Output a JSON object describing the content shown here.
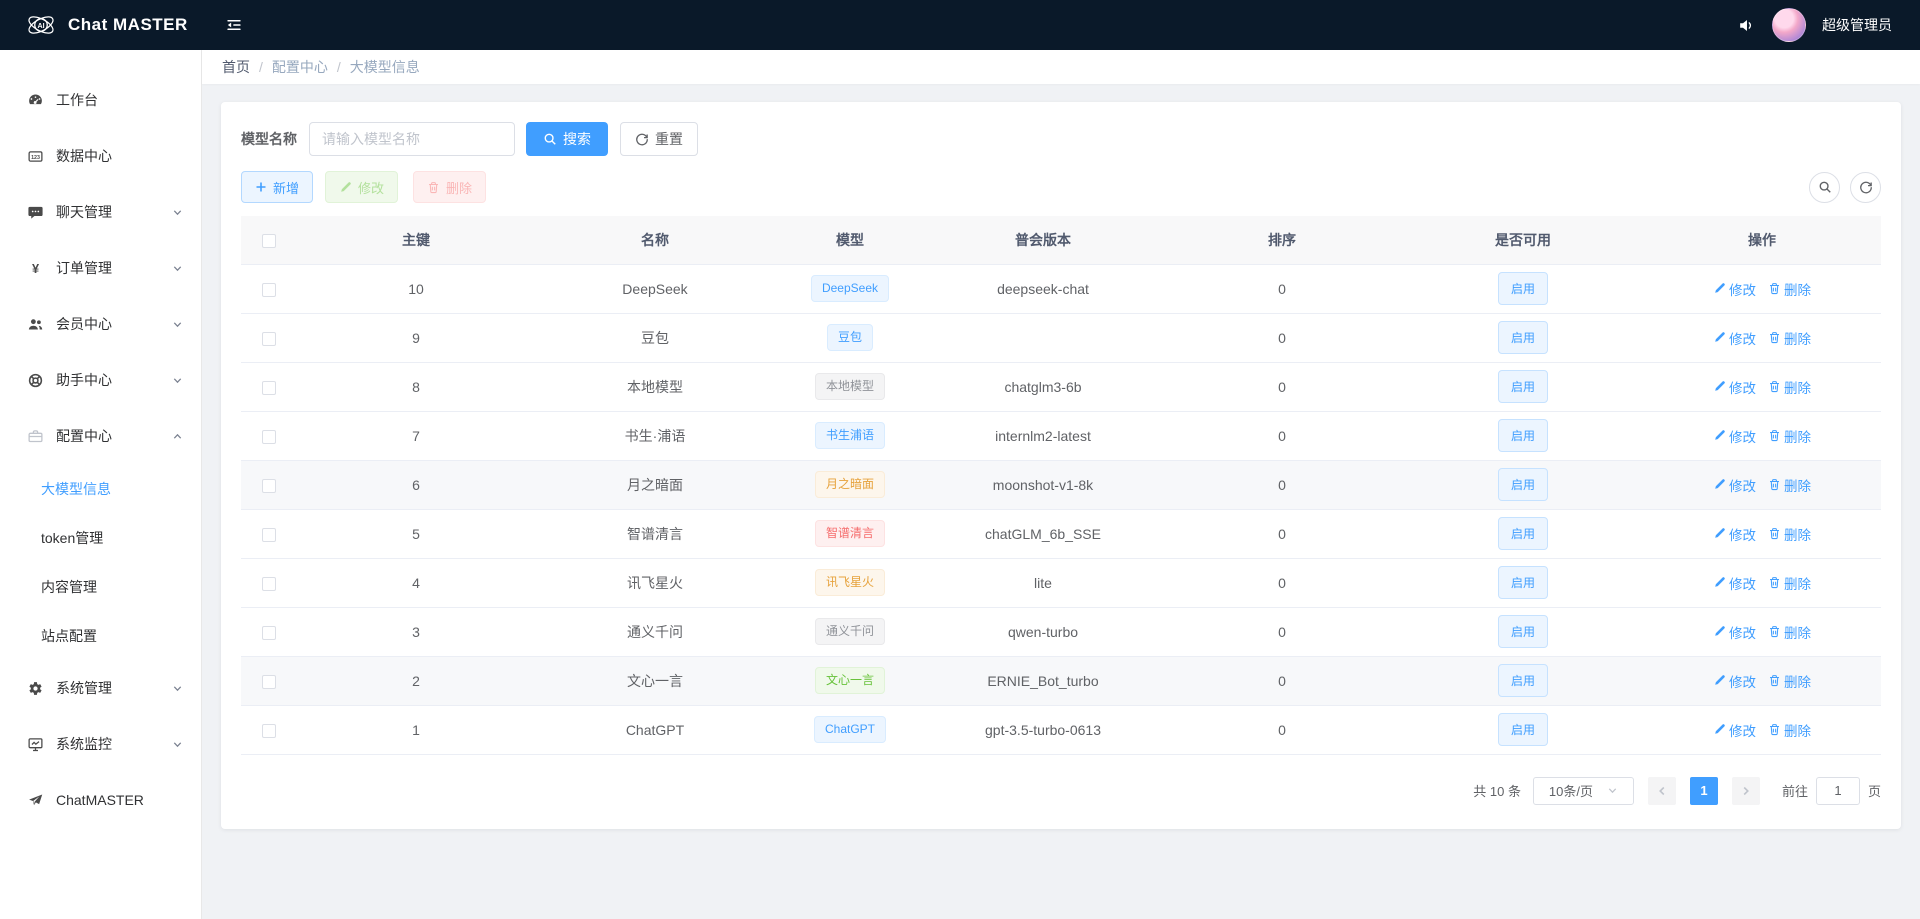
{
  "navbar": {
    "brand": "Chat MASTER",
    "user": "超级管理员",
    "logo_text": "AI"
  },
  "breadcrumb": {
    "items": [
      "首页",
      "配置中心",
      "大模型信息"
    ],
    "separator": "/"
  },
  "sidebar": {
    "items": [
      {
        "label": "工作台",
        "icon": "dashboard-icon",
        "level": 1
      },
      {
        "label": "数据中心",
        "icon": "data-center-icon",
        "level": 1
      },
      {
        "label": "聊天管理",
        "icon": "chat-icon",
        "level": 1,
        "arrow": "down"
      },
      {
        "label": "订单管理",
        "icon": "order-yen-icon",
        "level": 1,
        "arrow": "down"
      },
      {
        "label": "会员中心",
        "icon": "members-icon",
        "level": 1,
        "arrow": "down"
      },
      {
        "label": "助手中心",
        "icon": "assistant-icon",
        "level": 1,
        "arrow": "down"
      },
      {
        "label": "配置中心",
        "icon": "config-icon",
        "level": 1,
        "arrow": "up",
        "expanded": true
      },
      {
        "label": "大模型信息",
        "level": 2,
        "active": true
      },
      {
        "label": "token管理",
        "level": 2
      },
      {
        "label": "内容管理",
        "level": 2
      },
      {
        "label": "站点配置",
        "level": 2
      },
      {
        "label": "系统管理",
        "icon": "system-gear-icon",
        "level": 1,
        "arrow": "down"
      },
      {
        "label": "系统监控",
        "icon": "monitor-icon",
        "level": 1,
        "arrow": "down"
      },
      {
        "label": "ChatMASTER",
        "icon": "paper-plane-icon",
        "level": 1
      }
    ]
  },
  "search": {
    "label": "模型名称",
    "placeholder": "请输入模型名称",
    "search_label": "搜索",
    "reset_label": "重置"
  },
  "toolbar": {
    "add_label": "新增",
    "edit_label": "修改",
    "delete_label": "删除"
  },
  "table": {
    "columns": [
      "",
      "主键",
      "名称",
      "模型",
      "普会版本",
      "排序",
      "是否可用",
      "操作"
    ],
    "action_edit": "修改",
    "action_delete": "删除",
    "rows": [
      {
        "id": "10",
        "name": "DeepSeek",
        "tag": "DeepSeek",
        "tag_type": "primary",
        "version": "deepseek-chat",
        "sort": "0",
        "status": "启用",
        "highlighted": false
      },
      {
        "id": "9",
        "name": "豆包",
        "tag": "豆包",
        "tag_type": "primary",
        "version": "",
        "sort": "0",
        "status": "启用",
        "highlighted": false
      },
      {
        "id": "8",
        "name": "本地模型",
        "tag": "本地模型",
        "tag_type": "info",
        "version": "chatglm3-6b",
        "sort": "0",
        "status": "启用",
        "highlighted": false
      },
      {
        "id": "7",
        "name": "书生·浦语",
        "tag": "书生浦语",
        "tag_type": "primary",
        "version": "internlm2-latest",
        "sort": "0",
        "status": "启用",
        "highlighted": false
      },
      {
        "id": "6",
        "name": "月之暗面",
        "tag": "月之暗面",
        "tag_type": "warning",
        "version": "moonshot-v1-8k",
        "sort": "0",
        "status": "启用",
        "highlighted": true
      },
      {
        "id": "5",
        "name": "智谱清言",
        "tag": "智谱清言",
        "tag_type": "danger",
        "version": "chatGLM_6b_SSE",
        "sort": "0",
        "status": "启用",
        "highlighted": false
      },
      {
        "id": "4",
        "name": "讯飞星火",
        "tag": "讯飞星火",
        "tag_type": "warning",
        "version": "lite",
        "sort": "0",
        "status": "启用",
        "highlighted": false
      },
      {
        "id": "3",
        "name": "通义千问",
        "tag": "通义千问",
        "tag_type": "info",
        "version": "qwen-turbo",
        "sort": "0",
        "status": "启用",
        "highlighted": false
      },
      {
        "id": "2",
        "name": "文心一言",
        "tag": "文心一言",
        "tag_type": "success",
        "version": "ERNIE_Bot_turbo",
        "sort": "0",
        "status": "启用",
        "highlighted": true
      },
      {
        "id": "1",
        "name": "ChatGPT",
        "tag": "ChatGPT",
        "tag_type": "primary",
        "version": "gpt-3.5-turbo-0613",
        "sort": "0",
        "status": "启用",
        "highlighted": false
      }
    ]
  },
  "pagination": {
    "total": "共 10 条",
    "page_size": "10条/页",
    "current_page": "1",
    "goto_label": "前往",
    "goto_value": "1",
    "goto_unit": "页"
  },
  "colors": {
    "primary": "#409eff",
    "navbar_bg": "#0a1929",
    "success": "#67c23a",
    "warning": "#e6a23c",
    "danger": "#f56c6c",
    "info": "#909399"
  }
}
